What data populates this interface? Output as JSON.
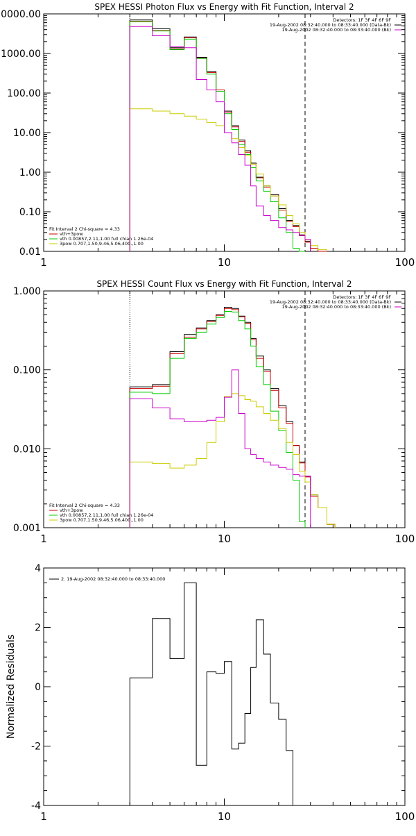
{
  "chart_data": [
    {
      "type": "line",
      "title": "SPEX HESSI Photon Flux vs Energy with Fit Function, Interval 2",
      "xscale": "log",
      "yscale": "log",
      "xlim": [
        1,
        100
      ],
      "ylim": [
        0.01,
        10000
      ],
      "xticks": [
        1,
        10,
        100
      ],
      "xtick_labels": [
        "1",
        "10",
        "100"
      ],
      "yticks": [
        0.01,
        0.1,
        1,
        10,
        100,
        1000,
        10000
      ],
      "ytick_labels": [
        "0.01",
        "0.10",
        "1.00",
        "10.00",
        "100.00",
        "1000.00",
        "10000.00"
      ],
      "header_lines": [
        "Detectors: 1F 3F 4F 6F 9F",
        "19-Aug-2002 08:32:40.000 to 08:33:40.000 (Data-Bk)",
        "19-Aug-2002 08:32:40.000 to 08:33:40.000 (Bk)"
      ],
      "header_colors": [
        "#000000",
        "#000000",
        "#cc00cc"
      ],
      "legend_lines": [
        "Fit Interval 2   Chi-square = 4.33",
        "vth+3pow",
        "vth 0.00857,2.11,1.00  full chian 1.26e-04",
        "3pow 0.707,1.50,9.46,5.06,400.,1.00"
      ],
      "legend_colors": [
        "#000000",
        "#cc0000",
        "#00cc00",
        "#cccc00"
      ],
      "vlines": [
        {
          "x": 3.0,
          "style": "dotted"
        },
        {
          "x": 28.0,
          "style": "dashed"
        }
      ],
      "edges": [
        3.0,
        4.0,
        5.0,
        6.0,
        7.0,
        8.0,
        9.0,
        10.0,
        11.0,
        12.0,
        13.0,
        14.0,
        15.0,
        16.5,
        18.0,
        20.0,
        22.0,
        24.0,
        26.0,
        28.0,
        30.0,
        33.0,
        37.0
      ],
      "series": [
        {
          "role": "data",
          "color": "#000000",
          "values": [
            7000,
            4200,
            1400,
            2600,
            800,
            350,
            120,
            35,
            15,
            6.5,
            3.5,
            1.7,
            0.75,
            0.45,
            0.27,
            0.12,
            0.06,
            0.045,
            0.026,
            0.018,
            0.012,
            0.01
          ]
        },
        {
          "role": "fit total",
          "color": "#cc0000",
          "values": [
            6500,
            3800,
            1300,
            2500,
            770,
            330,
            120,
            33,
            14,
            6.0,
            3.2,
            1.6,
            0.72,
            0.42,
            0.25,
            0.11,
            0.058,
            0.042,
            0.025,
            0.017,
            0.012,
            0.01
          ]
        },
        {
          "role": "thermal",
          "color": "#00cc00",
          "values": [
            6300,
            3700,
            1250,
            2300,
            750,
            300,
            110,
            30,
            12,
            5.0,
            2.8,
            1.3,
            0.6,
            0.33,
            0.18,
            0.07,
            0.03,
            0.012,
            0.01
          ]
        },
        {
          "role": "power law",
          "color": "#cccc00",
          "values": [
            40,
            35,
            30,
            26,
            22,
            18,
            15,
            10,
            7.0,
            4.2,
            2.6,
            1.6,
            0.9,
            0.45,
            0.25,
            0.15,
            0.08,
            0.05,
            0.03,
            0.02,
            0.014,
            0.011
          ]
        },
        {
          "role": "background",
          "color": "#cc00cc",
          "values": [
            4800,
            2800,
            1500,
            1400,
            220,
            120,
            60,
            10,
            5.5,
            2.8,
            1.5,
            0.45,
            0.14,
            0.08,
            0.06,
            0.04,
            0.035,
            0.03,
            0.025,
            0.02
          ]
        }
      ]
    },
    {
      "type": "line",
      "title": "SPEX HESSI Count Flux vs Energy with Fit Function, Interval 2",
      "xscale": "log",
      "yscale": "log",
      "xlim": [
        1,
        100
      ],
      "ylim": [
        0.001,
        1
      ],
      "xticks": [
        1,
        10,
        100
      ],
      "xtick_labels": [
        "1",
        "10",
        "100"
      ],
      "yticks": [
        0.001,
        0.01,
        0.1,
        1
      ],
      "ytick_labels": [
        "0.001",
        "0.010",
        "0.100",
        "1.000"
      ],
      "header_lines": [
        "Detectors: 1F 3F 4F 6F 9F",
        "19-Aug-2002 08:32:40.000 to 08:33:40.000 (Data-Bk)",
        "19-Aug-2002 08:32:40.000 to 08:33:40.000 (Bk)"
      ],
      "header_colors": [
        "#000000",
        "#000000",
        "#cc00cc"
      ],
      "legend_lines": [
        "Fit Interval 2   Chi-square = 4.33",
        "vth+3pow",
        "vth 0.00857,2.11,1.00  full chian 1.26e-04",
        "3pow 0.707,1.50,9.46,5.06,400.,1.00"
      ],
      "legend_colors": [
        "#000000",
        "#cc0000",
        "#00cc00",
        "#cccc00"
      ],
      "vlines": [
        {
          "x": 3.0,
          "style": "dotted"
        },
        {
          "x": 28.0,
          "style": "dashed"
        }
      ],
      "edges": [
        3.0,
        4.0,
        5.0,
        6.0,
        7.0,
        8.0,
        9.0,
        10.0,
        11.0,
        12.0,
        13.0,
        14.0,
        15.0,
        16.5,
        18.0,
        20.0,
        22.0,
        24.0,
        26.0,
        28.0,
        30.0,
        33.0,
        37.0,
        41.0
      ],
      "series": [
        {
          "role": "data",
          "color": "#000000",
          "values": [
            0.061,
            0.065,
            0.17,
            0.28,
            0.34,
            0.42,
            0.5,
            0.62,
            0.6,
            0.48,
            0.4,
            0.25,
            0.15,
            0.1,
            0.058,
            0.035,
            0.022,
            0.011,
            0.0068,
            0.0045,
            0.0026,
            0.0018,
            0.0011
          ]
        },
        {
          "role": "fit total",
          "color": "#cc0000",
          "values": [
            0.058,
            0.062,
            0.16,
            0.26,
            0.33,
            0.41,
            0.49,
            0.6,
            0.58,
            0.47,
            0.39,
            0.24,
            0.14,
            0.095,
            0.055,
            0.033,
            0.021,
            0.011,
            0.0066,
            0.0044,
            0.0025,
            0.0018,
            0.0011
          ]
        },
        {
          "role": "thermal",
          "color": "#00cc00",
          "values": [
            0.052,
            0.05,
            0.14,
            0.25,
            0.3,
            0.38,
            0.46,
            0.55,
            0.54,
            0.42,
            0.33,
            0.2,
            0.11,
            0.065,
            0.03,
            0.017,
            0.009,
            0.004,
            0.0012
          ]
        },
        {
          "role": "power law",
          "color": "#cccc00",
          "values": [
            0.0068,
            0.0065,
            0.0057,
            0.0062,
            0.0075,
            0.012,
            0.022,
            0.046,
            0.05,
            0.047,
            0.042,
            0.04,
            0.034,
            0.028,
            0.023,
            0.018,
            0.012,
            0.0085,
            0.0052,
            0.0038,
            0.0026,
            0.0018,
            0.0011
          ]
        },
        {
          "role": "background",
          "color": "#cc00cc",
          "values": [
            0.043,
            0.033,
            0.024,
            0.022,
            0.022,
            0.023,
            0.025,
            0.045,
            0.1,
            0.028,
            0.01,
            0.0085,
            0.0075,
            0.0068,
            0.0062,
            0.0058,
            0.0055,
            0.0047,
            0.0045,
            0.0045
          ]
        }
      ]
    },
    {
      "type": "line",
      "title": "",
      "ylabel": "Normalized Residuals",
      "xscale": "log",
      "xlim": [
        1,
        100
      ],
      "ylim": [
        -4,
        4
      ],
      "xticks": [
        1,
        10,
        100
      ],
      "xtick_labels": [
        "1",
        "10",
        "100"
      ],
      "yticks": [
        -4,
        -2,
        0,
        2,
        4
      ],
      "ytick_labels": [
        "-4",
        "-2",
        "0",
        "2",
        "4"
      ],
      "legend_lines": [
        "2. 19-Aug-2002 08:32:40.000 to 08:33:40.000"
      ],
      "edges": [
        3.0,
        4.0,
        5.0,
        6.0,
        7.0,
        8.0,
        9.0,
        10.0,
        11.0,
        12.0,
        13.0,
        14.0,
        15.0,
        16.5,
        18.0,
        20.0,
        22.0,
        24.0,
        26.0,
        28.0
      ],
      "series": [
        {
          "role": "residuals",
          "color": "#000000",
          "values": [
            0.3,
            2.3,
            0.95,
            3.5,
            -2.65,
            0.5,
            0.45,
            0.85,
            -2.1,
            -1.9,
            -0.9,
            0.65,
            2.25,
            1.1,
            -0.55,
            -1.1,
            -2.15
          ]
        }
      ]
    }
  ]
}
